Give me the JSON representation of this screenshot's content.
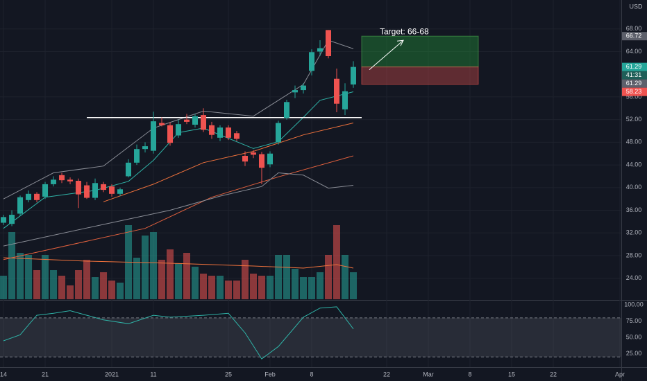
{
  "chart_data": {
    "type": "candlestick",
    "currency": "USD",
    "up_color": "#26a69a",
    "down_color": "#ef5350",
    "xlim": [
      -0.42,
      74.17
    ],
    "xticks": [
      {
        "value": 0,
        "label": "14"
      },
      {
        "value": 5,
        "label": "21"
      },
      {
        "value": 13,
        "label": "2021"
      },
      {
        "value": 18,
        "label": "11"
      },
      {
        "value": 27,
        "label": "25"
      },
      {
        "value": 32,
        "label": "Feb"
      },
      {
        "value": 37,
        "label": "8"
      },
      {
        "value": 46,
        "label": "22"
      },
      {
        "value": 51,
        "label": "Mar"
      },
      {
        "value": 56,
        "label": "8"
      },
      {
        "value": 61,
        "label": "15"
      },
      {
        "value": 66,
        "label": "22"
      },
      {
        "value": 74,
        "label": "Apr"
      }
    ],
    "ylim": [
      20.3,
      73.1
    ],
    "yticks": [
      {
        "value": 68,
        "label": "68.00"
      },
      {
        "value": 64,
        "label": "64.00"
      },
      {
        "value": 56,
        "label": "56.00"
      },
      {
        "value": 52,
        "label": "52.00"
      },
      {
        "value": 48,
        "label": "48.00"
      },
      {
        "value": 44,
        "label": "44.00"
      },
      {
        "value": 40,
        "label": "40.00"
      },
      {
        "value": 36,
        "label": "36.00"
      },
      {
        "value": 32,
        "label": "32.00"
      },
      {
        "value": 28,
        "label": "28.00"
      },
      {
        "value": 24,
        "label": "24.00"
      }
    ],
    "grid": true,
    "candles": {
      "open": [
        33.8,
        33.6,
        35.4,
        37.8,
        38.9,
        38.4,
        40.6,
        42.2,
        41.4,
        41.2,
        40.4,
        38.2,
        40.6,
        40.2,
        38.9,
        42.0,
        44.4,
        46.8,
        46.5,
        51.4,
        51.0,
        49.2,
        52.0,
        51.1,
        52.8,
        51.0,
        48.8,
        50.6,
        49.6,
        45.6,
        46.2,
        45.9,
        44.1,
        48.0,
        52.3,
        56.8,
        57.2,
        60.6,
        64.0,
        67.8,
        59.2,
        53.8,
        58.2
      ],
      "high": [
        35.2,
        36.0,
        38.6,
        39.5,
        39.2,
        41.0,
        42.0,
        42.6,
        41.8,
        41.6,
        41.0,
        41.6,
        41.0,
        40.6,
        40.0,
        45.0,
        47.6,
        48.0,
        53.4,
        52.4,
        51.5,
        52.0,
        53.0,
        53.0,
        54.0,
        51.6,
        51.0,
        51.0,
        50.0,
        46.4,
        46.6,
        46.3,
        46.4,
        51.8,
        55.5,
        58.0,
        58.4,
        64.4,
        66.0,
        67.8,
        61.0,
        58.4,
        62.3
      ],
      "low": [
        33.4,
        33.2,
        35.0,
        37.4,
        37.4,
        38.0,
        40.2,
        40.8,
        40.6,
        36.4,
        38.0,
        37.8,
        39.2,
        38.4,
        38.5,
        41.8,
        44.0,
        46.2,
        46.0,
        50.8,
        47.4,
        48.8,
        51.2,
        50.6,
        49.8,
        48.6,
        48.2,
        48.4,
        48.2,
        43.8,
        45.2,
        40.6,
        43.6,
        47.6,
        52.0,
        55.8,
        56.6,
        59.8,
        63.2,
        62.8,
        53.3,
        52.8,
        57.6
      ],
      "close": [
        34.8,
        35.2,
        38.3,
        38.9,
        37.8,
        40.6,
        41.4,
        41.3,
        41.1,
        38.8,
        38.2,
        40.8,
        39.6,
        38.9,
        39.7,
        44.4,
        46.8,
        47.3,
        51.7,
        51.0,
        47.9,
        51.2,
        51.6,
        52.6,
        50.2,
        49.3,
        50.6,
        48.8,
        48.6,
        44.6,
        45.8,
        43.5,
        46.0,
        51.4,
        55.1,
        57.2,
        58.0,
        63.9,
        64.6,
        63.2,
        54.8,
        57.0,
        61.29
      ]
    },
    "lines": [
      {
        "color": "#2fb3a7",
        "x": [
          0,
          5,
          11,
          15,
          18,
          21,
          24,
          27,
          30,
          33,
          36,
          38,
          42
        ],
        "values": [
          32.8,
          38.3,
          39.5,
          41.1,
          44.8,
          49.7,
          50.5,
          48.7,
          46.9,
          48.1,
          52.4,
          55.4,
          56.9
        ]
      },
      {
        "color": "#f0723c",
        "x": [
          12,
          18,
          24,
          30,
          36,
          42
        ],
        "values": [
          37.5,
          40.6,
          44.4,
          46.4,
          49.3,
          51.4
        ]
      },
      {
        "color": "#e2613e",
        "x": [
          0,
          17,
          25,
          33,
          42
        ],
        "values": [
          27.3,
          32.8,
          38.3,
          41.9,
          45.6
        ]
      },
      {
        "color": "#8a8d96",
        "x": [
          0,
          6,
          12,
          18,
          24,
          30,
          36,
          39,
          42
        ],
        "values": [
          38.0,
          42.6,
          43.8,
          50.5,
          53.5,
          52.6,
          58.2,
          66.0,
          64.5
        ]
      },
      {
        "color": "#8a8d96",
        "x": [
          0,
          12,
          20,
          26,
          31,
          33,
          36,
          39,
          42
        ],
        "values": [
          29.7,
          33.5,
          36.0,
          38.5,
          40.2,
          42.6,
          42.2,
          39.9,
          40.4
        ]
      }
    ],
    "volume": {
      "values": [
        34,
        97,
        67,
        64,
        42,
        64,
        42,
        34,
        20,
        42,
        57,
        32,
        39,
        27,
        24,
        107,
        60,
        92,
        97,
        57,
        72,
        52,
        67,
        47,
        37,
        34,
        34,
        27,
        27,
        57,
        37,
        34,
        34,
        64,
        64,
        44,
        32,
        32,
        39,
        64,
        107,
        64,
        39
      ],
      "ma": {
        "color": "#f0723c",
        "x": [
          0,
          10,
          20,
          30,
          36,
          40,
          42
        ],
        "values": [
          60,
          55,
          52,
          48,
          45,
          50,
          45
        ]
      }
    },
    "level": {
      "price": 52.35,
      "from": 10,
      "to": 43
    },
    "target_box": {
      "from": 43,
      "to": 57,
      "entry": 61.29,
      "stop": 58.23,
      "target": 66.72,
      "annotation": "Target: 66-68"
    },
    "countdown": "41:31",
    "stochastic": {
      "color": "#2fb3a7",
      "ylim": [
        4.3,
        104.3
      ],
      "yticks": [
        {
          "value": 100,
          "label": "100.00"
        },
        {
          "value": 75,
          "label": "75.00"
        },
        {
          "value": 50,
          "label": "50.00"
        },
        {
          "value": 25,
          "label": "25.00"
        }
      ],
      "band": [
        20,
        80
      ],
      "x": [
        0,
        2,
        4,
        6,
        8,
        10,
        12,
        15,
        18,
        20,
        24,
        27,
        29,
        31,
        33,
        36,
        38,
        40,
        42
      ],
      "values": [
        44.7,
        54,
        84,
        87,
        91,
        84,
        77,
        71,
        84,
        81,
        84,
        87,
        57,
        17,
        36,
        81,
        95,
        97,
        63
      ]
    }
  }
}
